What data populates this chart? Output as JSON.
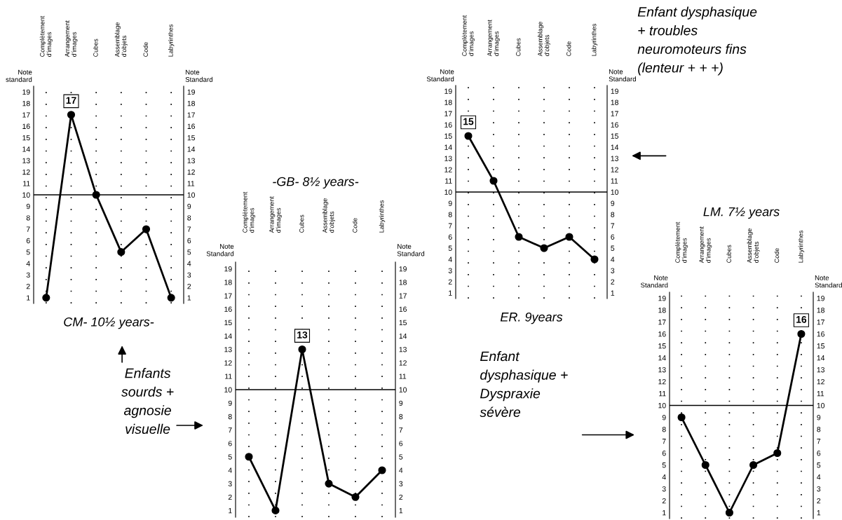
{
  "chart_data": [
    {
      "type": "line",
      "xlabel": "CM- 10½ years-",
      "ylabel": "Note standard",
      "y2label": "Note Standard",
      "categories": [
        "Complètement\nd'images",
        "Arrangement\nd'images",
        "Cubes",
        "Assemblage\nd'objets",
        "Code",
        "Labyrinthes"
      ],
      "values": [
        1,
        17,
        10,
        5,
        7,
        1
      ],
      "color": "#000000",
      "value_labels": [
        null,
        "17",
        null,
        null,
        null,
        null
      ],
      "ylim": [
        0.5,
        19.5
      ],
      "yticks": [
        1,
        2,
        3,
        4,
        5,
        6,
        7,
        8,
        9,
        10,
        11,
        12,
        13,
        14,
        15,
        16,
        17,
        18,
        19
      ],
      "y2lim": [
        0.5,
        19.5
      ],
      "y2ticks": [
        1,
        2,
        3,
        4,
        5,
        6,
        7,
        8,
        9,
        10,
        11,
        12,
        13,
        14,
        15,
        16,
        17,
        18,
        19
      ],
      "ref_lines": [
        {
          "axis": "y",
          "value": 10,
          "color": "#000000"
        }
      ],
      "grid": "x",
      "marker": "circle",
      "line_style": "solid"
    },
    {
      "type": "line",
      "title": "-GB- 8½ years-",
      "ylabel": "Note Standard",
      "y2label": "Note Standard",
      "categories": [
        "Complètement\nd'images",
        "Arrangement\nd'images",
        "Cubes",
        "Assemblage\nd'objets",
        "Code",
        "Labyrinthes"
      ],
      "values": [
        5,
        1,
        13,
        3,
        2,
        4
      ],
      "color": "#000000",
      "value_labels": [
        null,
        null,
        "13",
        null,
        null,
        null
      ],
      "ylim": [
        0.5,
        19.5
      ],
      "yticks": [
        1,
        2,
        3,
        4,
        5,
        6,
        7,
        8,
        9,
        10,
        11,
        12,
        13,
        14,
        15,
        16,
        17,
        18,
        19
      ],
      "y2lim": [
        0.5,
        19.5
      ],
      "y2ticks": [
        1,
        2,
        3,
        4,
        5,
        6,
        7,
        8,
        9,
        10,
        11,
        12,
        13,
        14,
        15,
        16,
        17,
        18,
        19
      ],
      "ref_lines": [
        {
          "axis": "y",
          "value": 10,
          "color": "#000000"
        }
      ],
      "grid": "x",
      "marker": "circle",
      "line_style": "solid",
      "annotations": [
        "Enfants\nsourds +\nagnosie\nvisuelle"
      ]
    },
    {
      "type": "line",
      "xlabel": "ER. 9years",
      "ylabel": "Note Standard",
      "y2label": "Note Standard",
      "categories": [
        "Complètement\nd'images",
        "Arrangement\nd'images",
        "Cubes",
        "Assemblage\nd'objets",
        "Code",
        "Labyrinthes"
      ],
      "values": [
        15,
        11,
        6,
        5,
        6,
        4
      ],
      "color": "#000000",
      "value_labels": [
        "15",
        null,
        null,
        null,
        null,
        null
      ],
      "ylim": [
        0.5,
        19.5
      ],
      "yticks": [
        1,
        2,
        3,
        4,
        5,
        6,
        7,
        8,
        9,
        10,
        11,
        12,
        13,
        14,
        15,
        16,
        17,
        18,
        19
      ],
      "y2lim": [
        0.5,
        19.5
      ],
      "y2ticks": [
        1,
        2,
        3,
        4,
        5,
        6,
        7,
        8,
        9,
        10,
        11,
        12,
        13,
        14,
        15,
        16,
        17,
        18,
        19
      ],
      "ref_lines": [
        {
          "axis": "y",
          "value": 10,
          "color": "#000000"
        }
      ],
      "grid": "x",
      "marker": "circle",
      "line_style": "solid",
      "annotations": [
        "Enfant dysphasique\n+ troubles\nneuromoteurs fins\n(lenteur + + +)"
      ]
    },
    {
      "type": "line",
      "title": "LM. 7½ years",
      "ylabel": "Note Standard",
      "y2label": "Note Standard",
      "categories": [
        "Complètement\nd'images",
        "Arrangement\nd'images",
        "Cubes",
        "Assemblage\nd'objets",
        "Code",
        "Labyrinthes"
      ],
      "values": [
        9,
        5,
        1,
        5,
        6,
        16
      ],
      "color": "#000000",
      "value_labels": [
        null,
        null,
        null,
        null,
        null,
        "16"
      ],
      "ylim": [
        0.5,
        19.5
      ],
      "yticks": [
        1,
        2,
        3,
        4,
        5,
        6,
        7,
        8,
        9,
        10,
        11,
        12,
        13,
        14,
        15,
        16,
        17,
        18,
        19
      ],
      "y2lim": [
        0.5,
        19.5
      ],
      "y2ticks": [
        1,
        2,
        3,
        4,
        5,
        6,
        7,
        8,
        9,
        10,
        11,
        12,
        13,
        14,
        15,
        16,
        17,
        18,
        19
      ],
      "ref_lines": [
        {
          "axis": "y",
          "value": 10,
          "color": "#000000"
        }
      ],
      "grid": "x",
      "marker": "circle",
      "line_style": "solid",
      "annotations": [
        "Enfant\ndysphasique +\nDyspraxie\nsévère"
      ]
    }
  ]
}
